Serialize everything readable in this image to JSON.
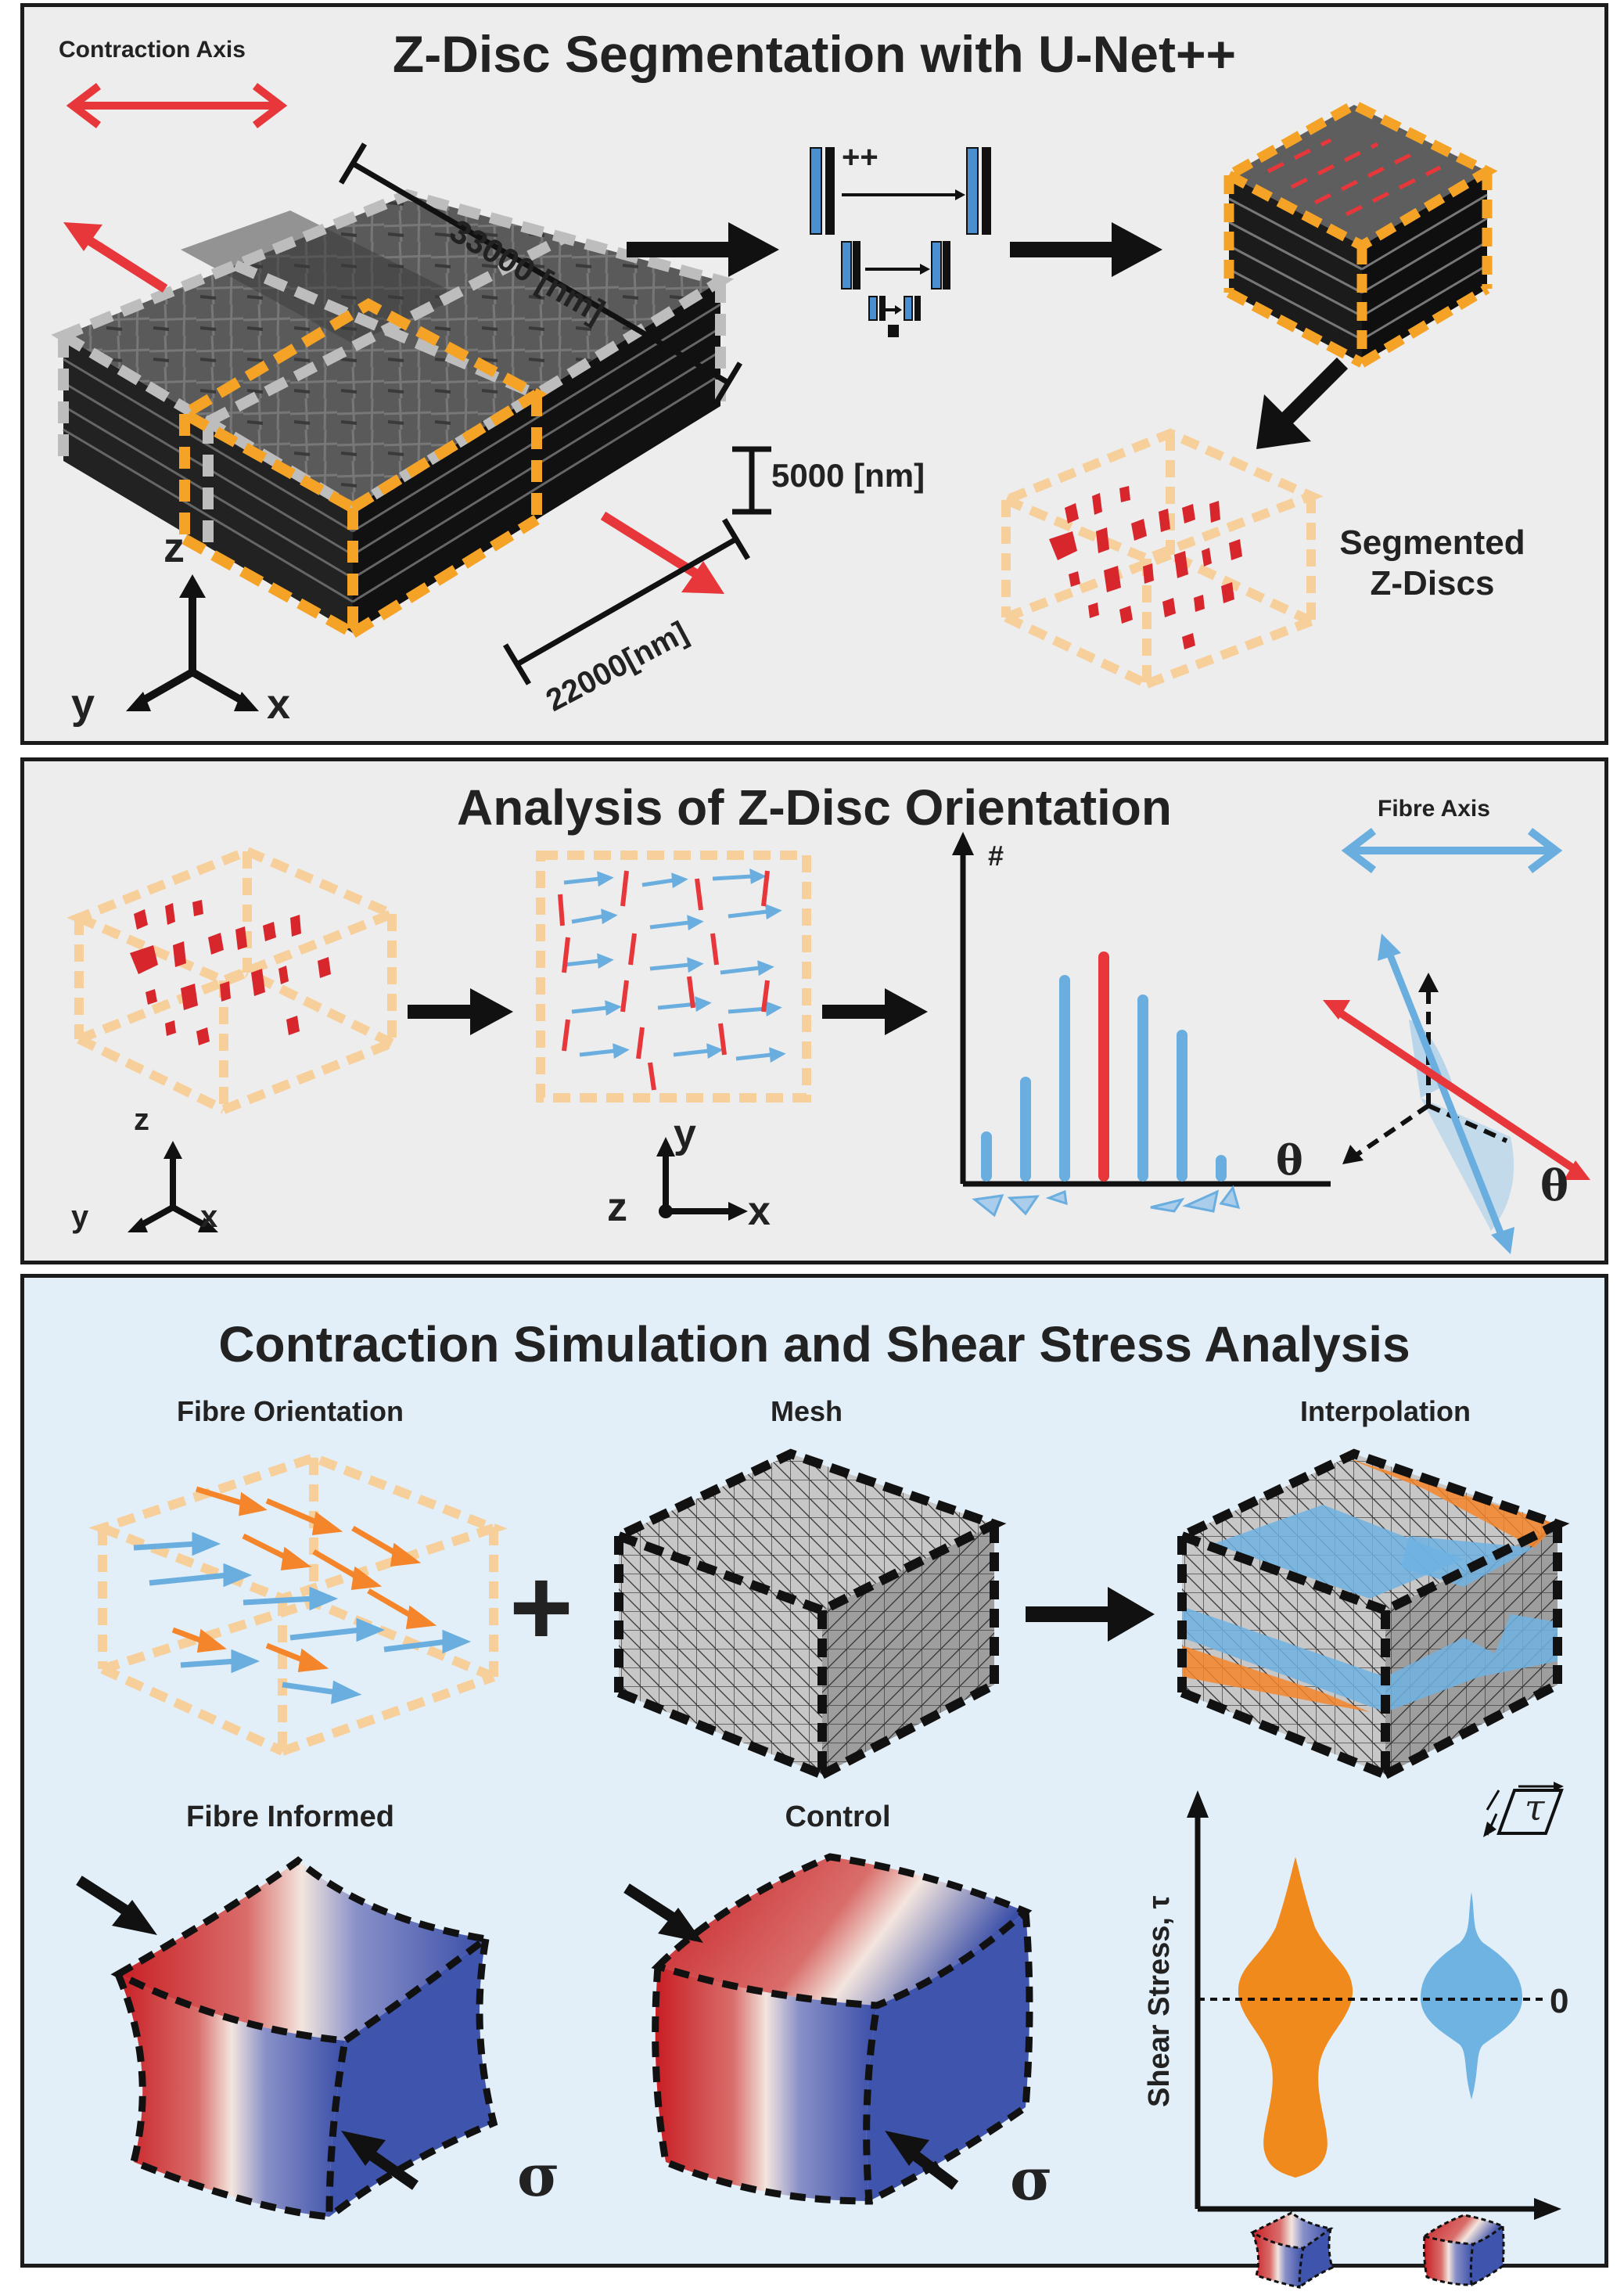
{
  "panel1": {
    "title": "Z-Disc Segmentation with U-Net++",
    "contraction_axis": "Contraction Axis",
    "dim_length": "33000 [nm]",
    "dim_height": "5000 [nm]",
    "dim_width": "22000[nm]",
    "unet_label": "++",
    "segmented_label_line1": "Segmented",
    "segmented_label_line2": "Z-Discs",
    "axes": {
      "z": "z",
      "y": "y",
      "x": "x"
    }
  },
  "panel2": {
    "title": "Analysis of Z-Disc Orientation",
    "fibre_axis": "Fibre Axis",
    "hist_y_label": "#",
    "hist_x_label": "θ",
    "angle_label": "θ",
    "axes3d": {
      "z": "z",
      "y": "y",
      "x": "x"
    },
    "axes2d": {
      "z": "z",
      "y": "y",
      "x": "x"
    }
  },
  "panel3": {
    "title": "Contraction Simulation and Shear Stress Analysis",
    "fibre_orientation": "Fibre Orientation",
    "mesh": "Mesh",
    "interpolation": "Interpolation",
    "plus": "+",
    "fibre_informed": "Fibre Informed",
    "control": "Control",
    "sigma": "σ",
    "shear_axis_label": "Shear Stress, τ",
    "zero_label": "0",
    "tau_symbol": "τ"
  },
  "colors": {
    "red": "#e8373a",
    "orange": "#f5a327",
    "blue": "#6aaee0",
    "stress_orange": "#f08a1c",
    "stress_blue": "#6fb3e3",
    "panel_bg": "#ededed",
    "panel3_bg": "#e3eff8"
  },
  "icons": [
    "double-arrow-icon",
    "right-arrow-icon",
    "unet-icon",
    "histogram-icon",
    "violin-icon"
  ]
}
